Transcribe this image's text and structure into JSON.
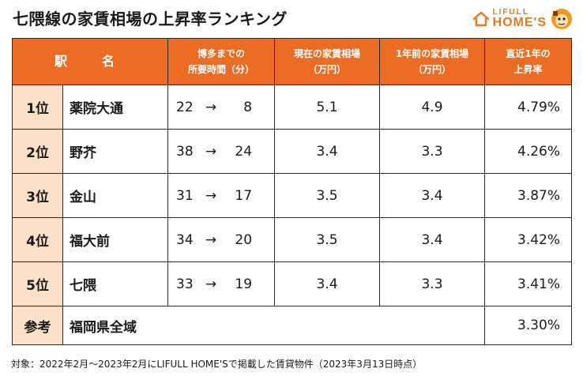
{
  "title": "七隈線の家賃相場の上昇率ランキング",
  "logo": {
    "line1": "LIFULL",
    "line2": "HOME'S"
  },
  "colors": {
    "accent": "#ec6c23",
    "rank_bg": "#fde0c8"
  },
  "headers": {
    "station": "駅　名",
    "time_line1": "博多までの",
    "time_line2": "所要時間（分）",
    "current_line1": "現在の家賃相場",
    "current_line2": "（万円）",
    "prev_line1": "1年前の家賃相場",
    "prev_line2": "（万円）",
    "rate_line1": "直近1年の",
    "rate_line2": "上昇率"
  },
  "rows": [
    {
      "rank": "1位",
      "station": "薬院大通",
      "time_from": "22",
      "arrow": "→",
      "time_to": "8",
      "current": "5.1",
      "previous": "4.9",
      "rate": "4.79%"
    },
    {
      "rank": "2位",
      "station": "野芥",
      "time_from": "38",
      "arrow": "→",
      "time_to": "24",
      "current": "3.4",
      "previous": "3.3",
      "rate": "4.26%"
    },
    {
      "rank": "3位",
      "station": "金山",
      "time_from": "31",
      "arrow": "→",
      "time_to": "17",
      "current": "3.5",
      "previous": "3.4",
      "rate": "3.87%"
    },
    {
      "rank": "4位",
      "station": "福大前",
      "time_from": "34",
      "arrow": "→",
      "time_to": "20",
      "current": "3.5",
      "previous": "3.4",
      "rate": "3.42%"
    },
    {
      "rank": "5位",
      "station": "七隈",
      "time_from": "33",
      "arrow": "→",
      "time_to": "19",
      "current": "3.4",
      "previous": "3.3",
      "rate": "3.41%"
    }
  ],
  "reference": {
    "label": "参考",
    "area": "福岡県全域",
    "rate": "3.30%"
  },
  "footnote": "対象：2022年2月～2023年2月にLIFULL HOME'Sで掲載した賃貸物件（2023年3月13日時点）"
}
